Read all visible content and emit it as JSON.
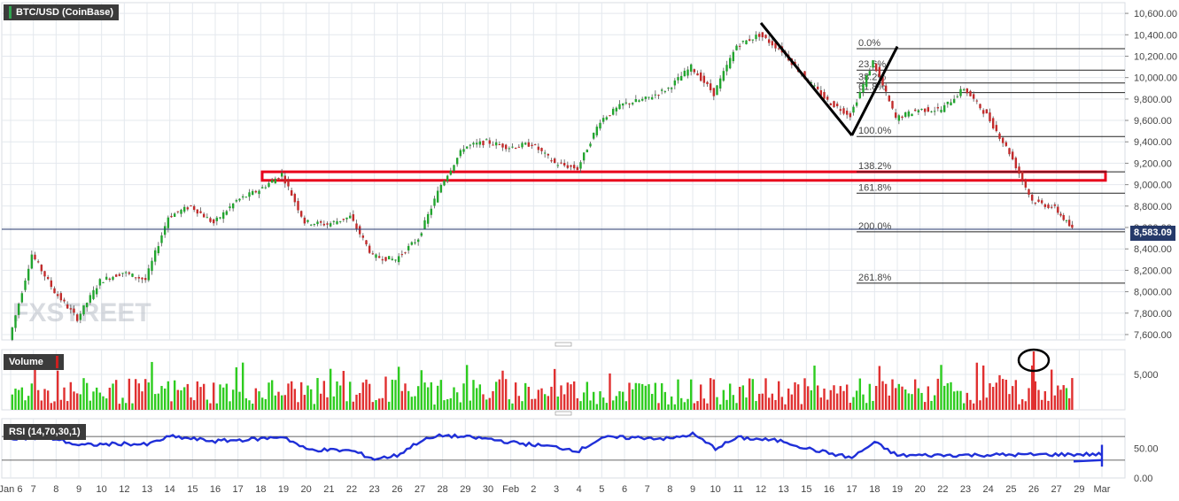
{
  "title": "BTC/USD (CoinBase)",
  "last_price": "8,583.09",
  "watermark": "FXSTREET",
  "volume_label": "Volume",
  "rsi_label": "RSI (14,70,30,1)",
  "colors": {
    "up": "#2ecc1f",
    "down": "#e03030",
    "rsi_line": "#1f2fd8",
    "price_line": "#26376c",
    "box": "#e8001c",
    "grid": "#e4e8ee"
  },
  "chart_data": [
    {
      "type": "candlestick",
      "title": "BTC/USD (CoinBase)",
      "x_ticks": [
        "Jan 6",
        "7",
        "8",
        "9",
        "10",
        "12",
        "13",
        "14",
        "15",
        "16",
        "17",
        "18",
        "19",
        "20",
        "21",
        "22",
        "23",
        "26",
        "27",
        "28",
        "29",
        "30",
        "Feb",
        "2",
        "3",
        "4",
        "5",
        "6",
        "7",
        "8",
        "9",
        "10",
        "11",
        "12",
        "13",
        "15",
        "16",
        "17",
        "18",
        "19",
        "20",
        "22",
        "23",
        "24",
        "25",
        "26",
        "27",
        "29",
        "Mar"
      ],
      "y_ticks": [
        "10,600.00",
        "10,400.00",
        "10,200.00",
        "10,000.00",
        "9,800.00",
        "9,600.00",
        "9,400.00",
        "9,200.00",
        "9,000.00",
        "8,800.00",
        "8,600.00",
        "8,400.00",
        "8,200.00",
        "8,000.00",
        "7,800.00",
        "7,600.00"
      ],
      "ylim": [
        7550,
        10700
      ],
      "price_path": [
        {
          "day": "Jan 6",
          "close": 7550
        },
        {
          "day": "7",
          "close": 8350
        },
        {
          "day": "8",
          "close": 8000
        },
        {
          "day": "9",
          "close": 7750
        },
        {
          "day": "10",
          "close": 8100
        },
        {
          "day": "12",
          "close": 8180
        },
        {
          "day": "13",
          "close": 8110
        },
        {
          "day": "14",
          "close": 8700
        },
        {
          "day": "15",
          "close": 8800
        },
        {
          "day": "16",
          "close": 8640
        },
        {
          "day": "17",
          "close": 8850
        },
        {
          "day": "18",
          "close": 8950
        },
        {
          "day": "19",
          "close": 9100
        },
        {
          "day": "20",
          "close": 8650
        },
        {
          "day": "21",
          "close": 8630
        },
        {
          "day": "22",
          "close": 8700
        },
        {
          "day": "23",
          "close": 8330
        },
        {
          "day": "26",
          "close": 8300
        },
        {
          "day": "27",
          "close": 8500
        },
        {
          "day": "28",
          "close": 9000
        },
        {
          "day": "29",
          "close": 9350
        },
        {
          "day": "30",
          "close": 9400
        },
        {
          "day": "Feb",
          "close": 9350
        },
        {
          "day": "2",
          "close": 9380
        },
        {
          "day": "3",
          "close": 9200
        },
        {
          "day": "4",
          "close": 9150
        },
        {
          "day": "5",
          "close": 9600
        },
        {
          "day": "6",
          "close": 9750
        },
        {
          "day": "7",
          "close": 9800
        },
        {
          "day": "8",
          "close": 9900
        },
        {
          "day": "9",
          "close": 10100
        },
        {
          "day": "10",
          "close": 9850
        },
        {
          "day": "11",
          "close": 10300
        },
        {
          "day": "12",
          "close": 10400
        },
        {
          "day": "13",
          "close": 10250
        },
        {
          "day": "15",
          "close": 10000
        },
        {
          "day": "16",
          "close": 9780
        },
        {
          "day": "17",
          "close": 9650
        },
        {
          "day": "18",
          "close": 10150
        },
        {
          "day": "19",
          "close": 9620
        },
        {
          "day": "20",
          "close": 9700
        },
        {
          "day": "22",
          "close": 9700
        },
        {
          "day": "23",
          "close": 9900
        },
        {
          "day": "24",
          "close": 9650
        },
        {
          "day": "25",
          "close": 9300
        },
        {
          "day": "26",
          "close": 8850
        },
        {
          "day": "27",
          "close": 8780
        },
        {
          "day": "28",
          "close": 8583
        }
      ],
      "fibonacci": [
        {
          "label": "0.0%",
          "value": 10270
        },
        {
          "label": "23.6%",
          "value": 10070
        },
        {
          "label": "38.2%",
          "value": 9950
        },
        {
          "label": "61.8%",
          "value": 9860
        },
        {
          "label": "100.0%",
          "value": 9450
        },
        {
          "label": "138.2%",
          "value": 9120
        },
        {
          "label": "161.8%",
          "value": 8920
        },
        {
          "label": "200.0%",
          "value": 8560
        },
        {
          "label": "261.8%",
          "value": 8080
        }
      ],
      "support_zone": {
        "from": 9040,
        "to": 9120
      },
      "last_price": 8583.09,
      "trend_lines": [
        {
          "from_day": "12",
          "from_value": 10510,
          "to_day": "17",
          "to_value": 9460
        },
        {
          "from_day": "17",
          "from_value": 9460,
          "to_day": "19",
          "to_value": 10290
        }
      ]
    },
    {
      "type": "bar",
      "title": "Volume",
      "y_ticks": [
        "5,000"
      ],
      "highlighted_day": "26"
    },
    {
      "type": "line",
      "title": "RSI (14,70,30,1)",
      "y_ticks": [
        "50.00",
        "0.00"
      ],
      "ylim": [
        0,
        100
      ],
      "levels": [
        70,
        30
      ],
      "points": [
        {
          "day": "Jan 6",
          "value": 68
        },
        {
          "day": "8",
          "value": 66
        },
        {
          "day": "9",
          "value": 55
        },
        {
          "day": "12",
          "value": 58
        },
        {
          "day": "13",
          "value": 56
        },
        {
          "day": "14",
          "value": 70
        },
        {
          "day": "16",
          "value": 62
        },
        {
          "day": "18",
          "value": 66
        },
        {
          "day": "19",
          "value": 70
        },
        {
          "day": "20",
          "value": 48
        },
        {
          "day": "22",
          "value": 46
        },
        {
          "day": "23",
          "value": 32
        },
        {
          "day": "26",
          "value": 38
        },
        {
          "day": "27",
          "value": 62
        },
        {
          "day": "28",
          "value": 72
        },
        {
          "day": "30",
          "value": 66
        },
        {
          "day": "Feb",
          "value": 60
        },
        {
          "day": "3",
          "value": 52
        },
        {
          "day": "4",
          "value": 46
        },
        {
          "day": "5",
          "value": 68
        },
        {
          "day": "7",
          "value": 68
        },
        {
          "day": "8",
          "value": 66
        },
        {
          "day": "9",
          "value": 74
        },
        {
          "day": "10",
          "value": 50
        },
        {
          "day": "11",
          "value": 68
        },
        {
          "day": "13",
          "value": 62
        },
        {
          "day": "15",
          "value": 50
        },
        {
          "day": "16",
          "value": 42
        },
        {
          "day": "17",
          "value": 34
        },
        {
          "day": "18",
          "value": 60
        },
        {
          "day": "19",
          "value": 38
        },
        {
          "day": "21",
          "value": 40
        },
        {
          "day": "22",
          "value": 46
        },
        {
          "day": "23",
          "value": 58
        },
        {
          "day": "24",
          "value": 40
        },
        {
          "day": "25",
          "value": 32
        },
        {
          "day": "26",
          "value": 20
        },
        {
          "day": "27",
          "value": 30
        },
        {
          "day": "28",
          "value": 28
        }
      ]
    }
  ]
}
